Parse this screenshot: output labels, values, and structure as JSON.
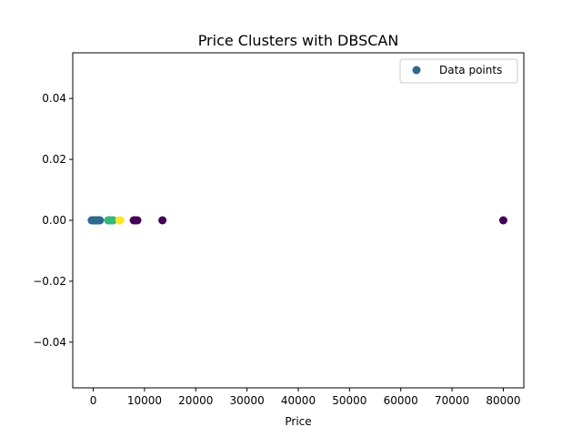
{
  "chart_data": {
    "type": "scatter",
    "title": "Price Clusters with DBSCAN",
    "xlabel": "Price",
    "ylabel": "",
    "xlim": [
      -4000,
      84000
    ],
    "ylim": [
      -0.055,
      0.055
    ],
    "xticks": [
      0,
      10000,
      20000,
      30000,
      40000,
      50000,
      60000,
      70000,
      80000
    ],
    "yticks": [
      -0.04,
      -0.02,
      0.0,
      0.02,
      0.04
    ],
    "xtick_labels": [
      "0",
      "10000",
      "20000",
      "30000",
      "40000",
      "50000",
      "60000",
      "70000",
      "80000"
    ],
    "ytick_labels": [
      "−0.04",
      "−0.02",
      "0.00",
      "0.02",
      "0.04"
    ],
    "grid": false,
    "legend": {
      "placement": "top-right",
      "entries": [
        "Data points"
      ]
    },
    "colors": {
      "noise": "#440154",
      "cluster_0": "#31688e",
      "cluster_1": "#35b779",
      "cluster_2": "#fde725",
      "legend_marker": "#31688e"
    },
    "series": [
      {
        "name": "Data points",
        "points": [
          {
            "x": -300,
            "y": 0,
            "cluster": "cluster_0"
          },
          {
            "x": -150,
            "y": 0,
            "cluster": "cluster_0"
          },
          {
            "x": 0,
            "y": 0,
            "cluster": "cluster_0"
          },
          {
            "x": 100,
            "y": 0,
            "cluster": "cluster_0"
          },
          {
            "x": 200,
            "y": 0,
            "cluster": "cluster_0"
          },
          {
            "x": 300,
            "y": 0,
            "cluster": "cluster_0"
          },
          {
            "x": 400,
            "y": 0,
            "cluster": "cluster_0"
          },
          {
            "x": 500,
            "y": 0,
            "cluster": "cluster_0"
          },
          {
            "x": 600,
            "y": 0,
            "cluster": "cluster_0"
          },
          {
            "x": 700,
            "y": 0,
            "cluster": "cluster_0"
          },
          {
            "x": 800,
            "y": 0,
            "cluster": "cluster_0"
          },
          {
            "x": 900,
            "y": 0,
            "cluster": "cluster_0"
          },
          {
            "x": 1000,
            "y": 0,
            "cluster": "cluster_0"
          },
          {
            "x": 1100,
            "y": 0,
            "cluster": "cluster_0"
          },
          {
            "x": 1300,
            "y": 0,
            "cluster": "cluster_0"
          },
          {
            "x": 2900,
            "y": 0,
            "cluster": "cluster_1"
          },
          {
            "x": 3100,
            "y": 0,
            "cluster": "cluster_1"
          },
          {
            "x": 3300,
            "y": 0,
            "cluster": "cluster_1"
          },
          {
            "x": 3600,
            "y": 0,
            "cluster": "cluster_1"
          },
          {
            "x": 3900,
            "y": 0,
            "cluster": "cluster_1"
          },
          {
            "x": 5100,
            "y": 0,
            "cluster": "cluster_2"
          },
          {
            "x": 5300,
            "y": 0,
            "cluster": "cluster_2"
          },
          {
            "x": 7900,
            "y": 0,
            "cluster": "noise"
          },
          {
            "x": 8200,
            "y": 0,
            "cluster": "noise"
          },
          {
            "x": 8600,
            "y": 0,
            "cluster": "noise"
          },
          {
            "x": 13500,
            "y": 0,
            "cluster": "noise"
          },
          {
            "x": 80000,
            "y": 0,
            "cluster": "noise"
          }
        ]
      }
    ]
  }
}
